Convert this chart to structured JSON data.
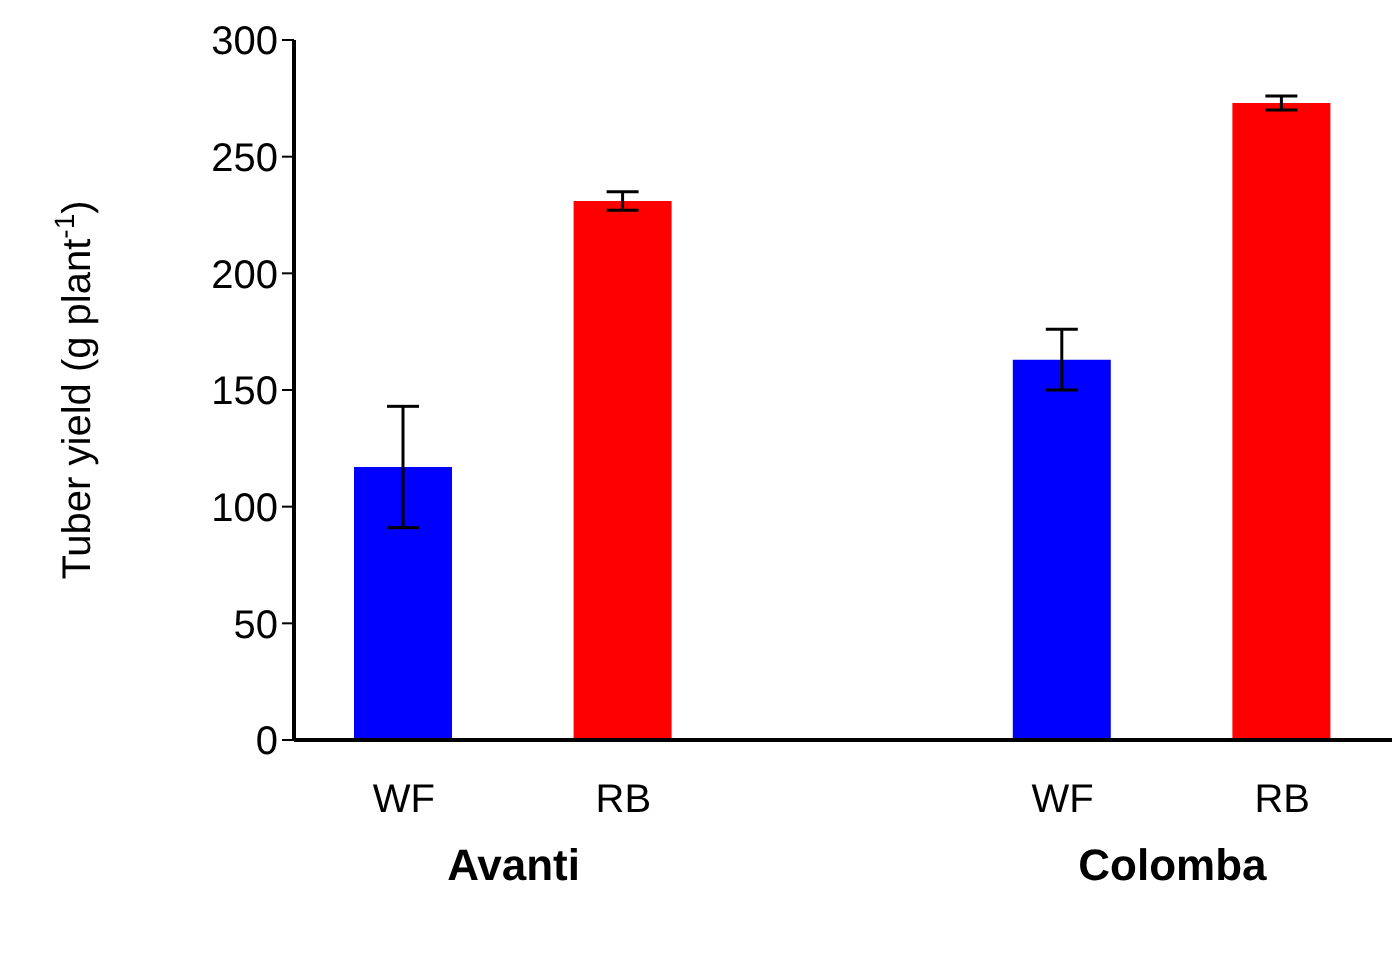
{
  "chart_data": {
    "type": "bar",
    "ylabel": "Tuber yield  (g plant$^{-1}$)",
    "categories": [
      "WF",
      "RB",
      null,
      "WF",
      "RB"
    ],
    "values": [
      117,
      231,
      null,
      163,
      273
    ],
    "colors": [
      "#0000ff",
      "#ff0000",
      "#ffffff",
      "#0000ff",
      "#ff0000"
    ],
    "errors": [
      26,
      4,
      null,
      13,
      3
    ],
    "ylim": [
      0,
      300
    ],
    "yticks": [
      0,
      50,
      100,
      150,
      200,
      250,
      300
    ],
    "grid": false,
    "legend": false,
    "annotations": [
      "Avanti",
      "Colomba"
    ]
  }
}
